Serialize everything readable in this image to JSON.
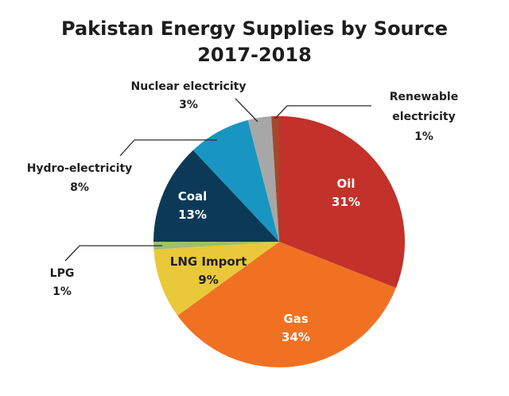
{
  "chart_data": {
    "type": "pie",
    "title": [
      "Pakistan Energy Supplies by Source",
      "2017-2018"
    ],
    "start": "top",
    "direction": "clockwise",
    "slices": [
      {
        "label": "Oil",
        "value": 31,
        "pct": "31%",
        "color": "#c2312a",
        "label_position": "inside",
        "text_color": "#ffffff"
      },
      {
        "label": "Gas",
        "value": 34,
        "pct": "34%",
        "color": "#f07122",
        "label_position": "inside",
        "text_color": "#ffffff"
      },
      {
        "label": "LNG Import",
        "value": 9,
        "pct": "9%",
        "color": "#e9c83a",
        "label_position": "inside",
        "text_color": "#1e1e1e"
      },
      {
        "label": "LPG",
        "value": 1,
        "pct": "1%",
        "color": "#9dc06c",
        "label_position": "outside"
      },
      {
        "label": "Coal",
        "value": 13,
        "pct": "13%",
        "color": "#0c3a56",
        "label_position": "inside",
        "text_color": "#ffffff"
      },
      {
        "label": "Hydro-electricity",
        "value": 8,
        "pct": "8%",
        "color": "#1896c1",
        "label_position": "outside"
      },
      {
        "label": "Nuclear electricity",
        "value": 3,
        "pct": "3%",
        "color": "#a7a7a7",
        "label_position": "outside"
      },
      {
        "label": "Renewable electricity",
        "label_lines": [
          "Renewable",
          "electricity"
        ],
        "value": 1,
        "pct": "1%",
        "color": "#a5472a",
        "label_position": "outside"
      }
    ]
  }
}
